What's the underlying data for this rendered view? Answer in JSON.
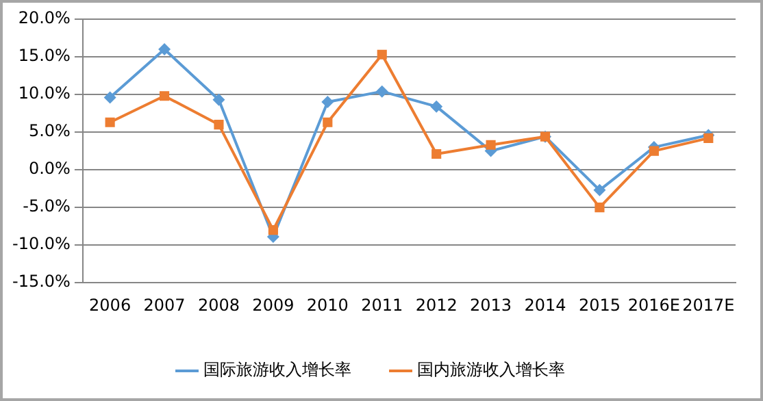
{
  "chart_data": {
    "type": "line",
    "categories": [
      "2006",
      "2007",
      "2008",
      "2009",
      "2010",
      "2011",
      "2012",
      "2013",
      "2014",
      "2015",
      "2016E",
      "2017E"
    ],
    "series": [
      {
        "name": "国际旅游收入增长率",
        "color": "#5b9bd5",
        "marker": "diamond",
        "values": [
          9.6,
          16.0,
          9.3,
          -8.9,
          9.0,
          10.4,
          8.4,
          2.5,
          4.4,
          -2.7,
          3.0,
          4.6
        ]
      },
      {
        "name": "国内旅游收入增长率",
        "color": "#ed7d31",
        "marker": "square",
        "values": [
          6.3,
          9.8,
          6.0,
          -8.0,
          6.3,
          15.3,
          2.1,
          3.3,
          4.4,
          -5.0,
          2.5,
          4.2
        ]
      }
    ],
    "ylim": [
      -15,
      20
    ],
    "yticks": [
      {
        "value": -15,
        "label": "-15.0%"
      },
      {
        "value": -10,
        "label": "-10.0%"
      },
      {
        "value": -5,
        "label": "-5.0%"
      },
      {
        "value": 0,
        "label": "0.0%"
      },
      {
        "value": 5,
        "label": "5.0%"
      },
      {
        "value": 10,
        "label": "10.0%"
      },
      {
        "value": 15,
        "label": "15.0%"
      },
      {
        "value": 20,
        "label": "20.0%"
      }
    ],
    "grid": "y",
    "legend": "bottom",
    "line_style": "solid"
  }
}
